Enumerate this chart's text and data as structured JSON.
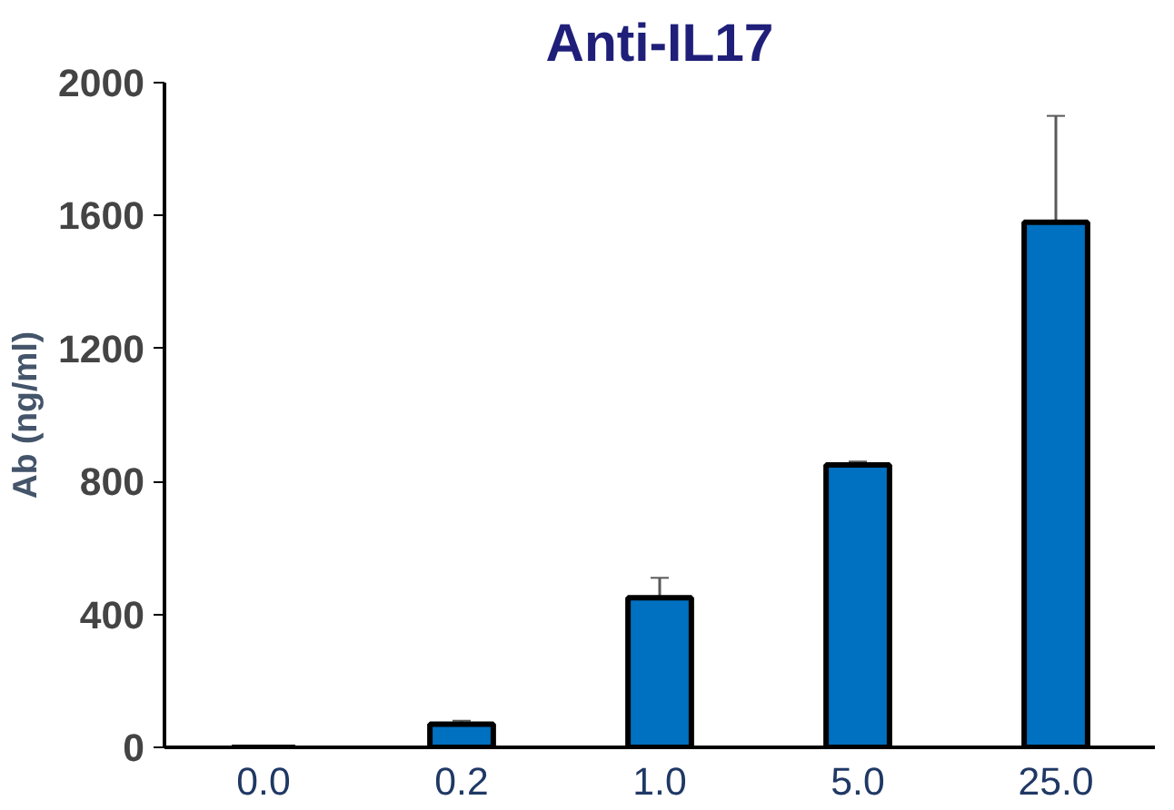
{
  "chart_data": {
    "type": "bar",
    "title": "Anti-IL17",
    "ylabel": "Ab (ng/ml)",
    "categories": [
      "0.0",
      "0.2",
      "1.0",
      "5.0",
      "25.0"
    ],
    "values": [
      null,
      70,
      450,
      850,
      1580
    ],
    "errors": [
      null,
      10,
      60,
      10,
      320
    ],
    "color": "#0070c0",
    "ylim": [
      0,
      2000
    ],
    "yticks": [
      0,
      400,
      800,
      1200,
      1600,
      2000
    ],
    "grid": false
  }
}
